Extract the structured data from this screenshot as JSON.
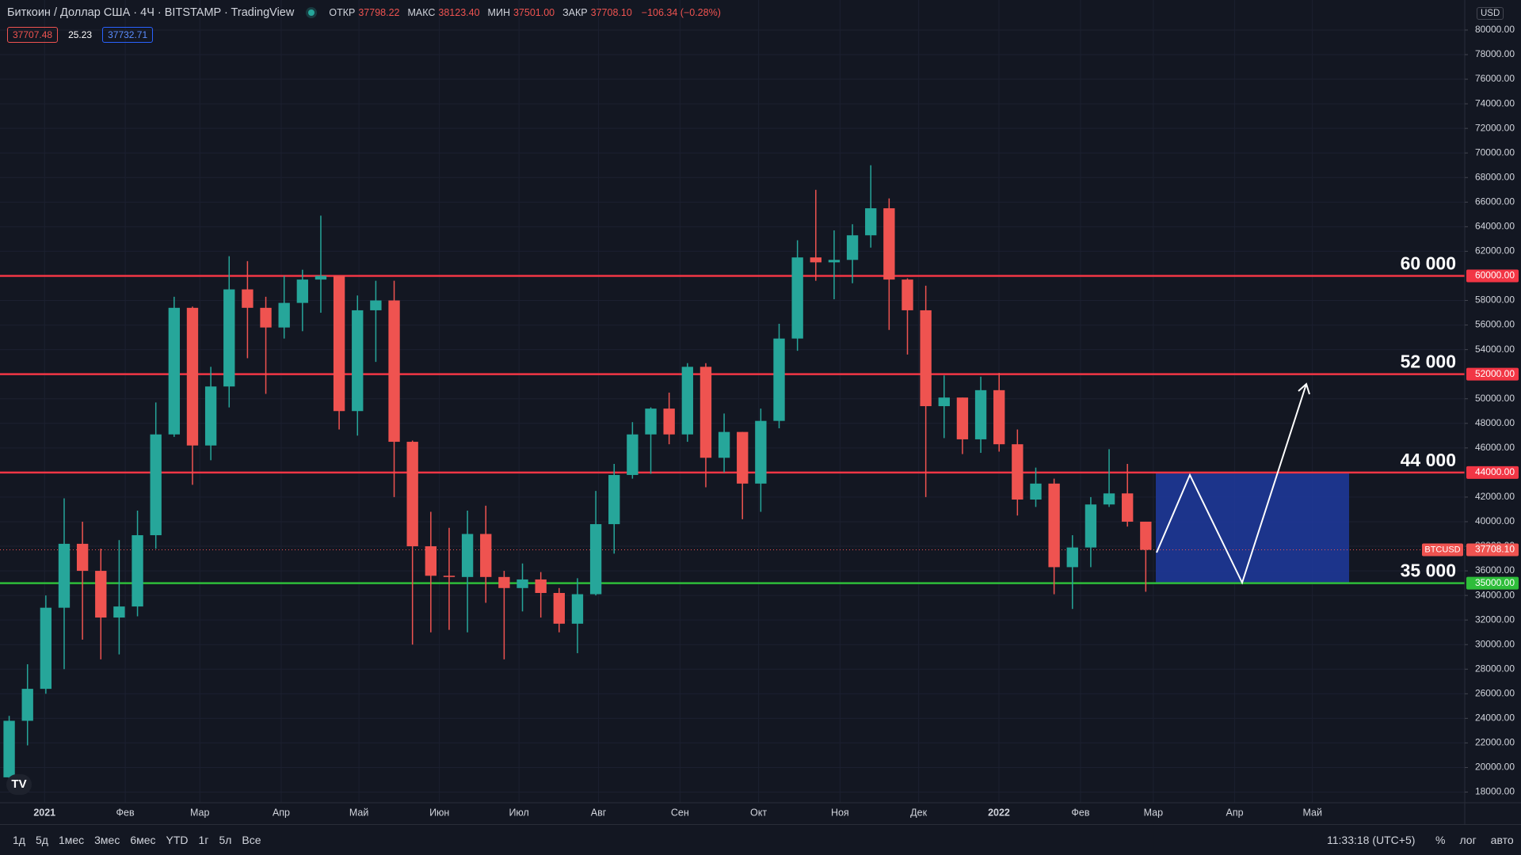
{
  "ui": {
    "symbol_title": "Биткоин / Доллар США · 4Ч · BITSTAMP · TradingView",
    "ohlc": [
      {
        "label": "ОТКР",
        "value": "37798.22"
      },
      {
        "label": "МАКС",
        "value": "38123.40"
      },
      {
        "label": "МИН",
        "value": "37501.00"
      },
      {
        "label": "ЗАКР",
        "value": "37708.10"
      }
    ],
    "change": "−106.34 (−0.28%)",
    "badges": [
      "37707.48",
      "25.23",
      "37732.71"
    ],
    "currency": "USD",
    "ranges": [
      "1д",
      "5д",
      "1мес",
      "3мес",
      "6мес",
      "YTD",
      "1г",
      "5л",
      "Все"
    ],
    "clock": "11:33:18 (UTC+5)",
    "scale_buttons": [
      "%",
      "лог",
      "авто"
    ]
  },
  "chart_data": {
    "type": "candlestick",
    "up_color": "#26a69a",
    "down_color": "#ef5350",
    "grid": true,
    "open": [
      19200,
      23800,
      26400,
      33000,
      38200,
      36000,
      32200,
      33100,
      38900,
      47100,
      57400,
      46200,
      51000,
      58900,
      57400,
      55800,
      57800,
      59700,
      60000,
      49000,
      57200,
      58000,
      46500,
      38000,
      35600,
      35500,
      39000,
      35500,
      34600,
      35300,
      34200,
      31700,
      34100,
      39800,
      43800,
      47100,
      49200,
      47100,
      52600,
      45200,
      47300,
      43100,
      48200,
      54900,
      61500,
      61100,
      61300,
      63300,
      65500,
      59700,
      57200,
      49400,
      50100,
      46700,
      50700,
      46300,
      41800,
      43100,
      36300,
      37900,
      41400,
      42300,
      40000
    ],
    "high": [
      24200,
      28400,
      34000,
      41900,
      40000,
      37800,
      38500,
      40900,
      49700,
      58300,
      57500,
      52600,
      61600,
      61200,
      58300,
      60000,
      60500,
      64900,
      60000,
      58400,
      59600,
      59600,
      46600,
      40800,
      39500,
      40900,
      41300,
      36000,
      36600,
      35900,
      34600,
      35400,
      42500,
      44700,
      48100,
      49300,
      50500,
      52900,
      52900,
      48800,
      47300,
      49200,
      56100,
      62900,
      67000,
      63700,
      64200,
      69000,
      66300,
      59800,
      59200,
      51900,
      50100,
      51800,
      52100,
      47500,
      44400,
      43500,
      38900,
      42000,
      45900,
      44700,
      40000
    ],
    "low": [
      19000,
      21800,
      26000,
      28000,
      30400,
      28800,
      29200,
      32300,
      37800,
      46900,
      43000,
      45000,
      49300,
      53300,
      50400,
      54900,
      55500,
      57000,
      47500,
      47000,
      53000,
      42000,
      30000,
      31000,
      31200,
      31000,
      33400,
      28800,
      32700,
      32200,
      31000,
      29300,
      34000,
      37400,
      43500,
      43900,
      46300,
      46500,
      42800,
      44000,
      40200,
      40800,
      47600,
      53900,
      59600,
      58100,
      59400,
      62300,
      55600,
      53600,
      42000,
      46800,
      45500,
      45600,
      45700,
      40500,
      41200,
      34100,
      32900,
      36300,
      41200,
      39600,
      34300
    ],
    "close": [
      23800,
      26400,
      33000,
      38200,
      36000,
      32200,
      33100,
      38900,
      47100,
      57400,
      46200,
      51000,
      58900,
      57400,
      55800,
      57800,
      59700,
      60000,
      49000,
      57200,
      58000,
      46500,
      38000,
      35600,
      35500,
      39000,
      35500,
      34600,
      35300,
      34200,
      31700,
      34100,
      39800,
      43800,
      47100,
      49200,
      47100,
      52600,
      45200,
      47300,
      43100,
      48200,
      54900,
      61500,
      61100,
      61300,
      63300,
      65500,
      59700,
      57200,
      49400,
      50100,
      46700,
      50700,
      46300,
      41800,
      43100,
      36300,
      37900,
      41400,
      42300,
      40000,
      37708.1
    ],
    "xlim": [
      -0.5,
      79.4
    ],
    "xticks": [
      {
        "value": 1.93,
        "label": "2021"
      },
      {
        "value": 6.33,
        "label": "Фев"
      },
      {
        "value": 10.4,
        "label": "Мар"
      },
      {
        "value": 14.84,
        "label": "Апр"
      },
      {
        "value": 19.08,
        "label": "Май"
      },
      {
        "value": 23.47,
        "label": "Июн"
      },
      {
        "value": 27.81,
        "label": "Июл"
      },
      {
        "value": 32.15,
        "label": "Авг"
      },
      {
        "value": 36.59,
        "label": "Сен"
      },
      {
        "value": 40.88,
        "label": "Окт"
      },
      {
        "value": 45.32,
        "label": "Ноя"
      },
      {
        "value": 49.61,
        "label": "Дек"
      },
      {
        "value": 53.99,
        "label": "2022"
      },
      {
        "value": 58.44,
        "label": "Фев"
      },
      {
        "value": 62.41,
        "label": "Мар"
      },
      {
        "value": 66.85,
        "label": "Апр"
      },
      {
        "value": 71.09,
        "label": "Май"
      }
    ],
    "ylim": [
      17132,
      82445
    ],
    "yticks": [
      {
        "value": 18000,
        "label": "18000.00"
      },
      {
        "value": 20000,
        "label": "20000.00"
      },
      {
        "value": 22000,
        "label": "22000.00"
      },
      {
        "value": 24000,
        "label": "24000.00"
      },
      {
        "value": 26000,
        "label": "26000.00"
      },
      {
        "value": 28000,
        "label": "28000.00"
      },
      {
        "value": 30000,
        "label": "30000.00"
      },
      {
        "value": 32000,
        "label": "32000.00"
      },
      {
        "value": 34000,
        "label": "34000.00"
      },
      {
        "value": 36000,
        "label": "36000.00"
      },
      {
        "value": 38000,
        "label": "38000.00"
      },
      {
        "value": 40000,
        "label": "40000.00"
      },
      {
        "value": 42000,
        "label": "42000.00"
      },
      {
        "value": 46000,
        "label": "46000.00"
      },
      {
        "value": 48000,
        "label": "48000.00"
      },
      {
        "value": 50000,
        "label": "50000.00"
      },
      {
        "value": 54000,
        "label": "54000.00"
      },
      {
        "value": 56000,
        "label": "56000.00"
      },
      {
        "value": 58000,
        "label": "58000.00"
      },
      {
        "value": 62000,
        "label": "62000.00"
      },
      {
        "value": 64000,
        "label": "64000.00"
      },
      {
        "value": 66000,
        "label": "66000.00"
      },
      {
        "value": 68000,
        "label": "68000.00"
      },
      {
        "value": 70000,
        "label": "70000.00"
      },
      {
        "value": 72000,
        "label": "72000.00"
      },
      {
        "value": 74000,
        "label": "74000.00"
      },
      {
        "value": 76000,
        "label": "76000.00"
      },
      {
        "value": 78000,
        "label": "78000.00"
      },
      {
        "value": 80000,
        "label": "80000.00"
      }
    ],
    "levels": [
      {
        "value": 60000,
        "label": "60 000",
        "axis_label": "60000.00",
        "color": "#f23645"
      },
      {
        "value": 52000,
        "label": "52 000",
        "axis_label": "52000.00",
        "color": "#f23645"
      },
      {
        "value": 44000,
        "label": "44 000",
        "axis_label": "44000.00",
        "color": "#f23645"
      },
      {
        "value": 35000,
        "label": "35 000",
        "axis_label": "35000.00",
        "color": "#2ebd3a"
      }
    ],
    "last_price": {
      "value": 37708.1,
      "label": "37708.10",
      "symbol": "BTCUSD",
      "color": "#ef5350"
    }
  }
}
